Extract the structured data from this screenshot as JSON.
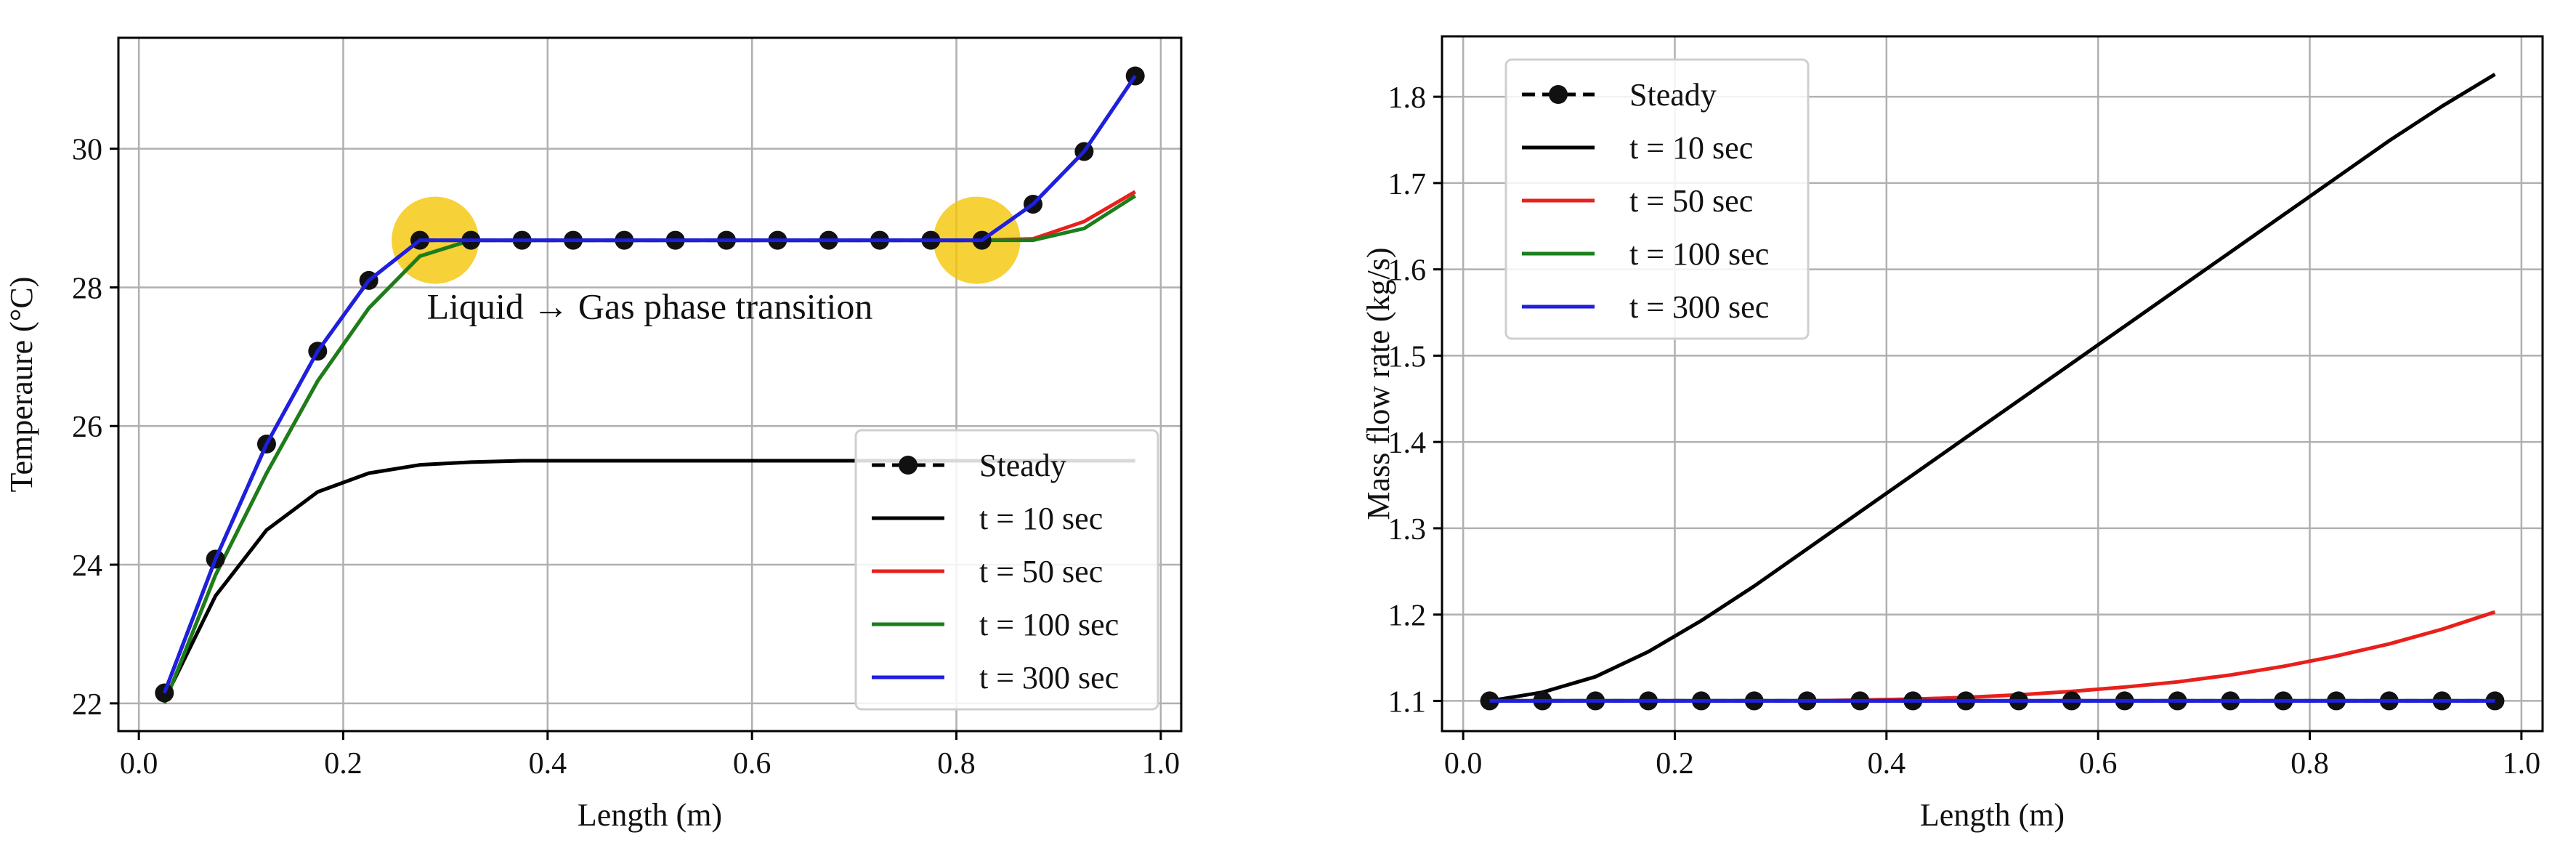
{
  "chart_data": [
    {
      "type": "line",
      "xlabel": "Length (m)",
      "ylabel": "Temperaure (°C)",
      "xlim": [
        -0.02,
        1.02
      ],
      "ylim": [
        21.6,
        31.6
      ],
      "xticks": [
        0.0,
        0.2,
        0.4,
        0.6,
        0.8,
        1.0
      ],
      "xtick_labels": [
        "0.0",
        "0.2",
        "0.4",
        "0.6",
        "0.8",
        "1.0"
      ],
      "yticks": [
        22,
        24,
        26,
        28,
        30
      ],
      "ytick_labels": [
        "22",
        "24",
        "26",
        "28",
        "30"
      ],
      "grid": true,
      "legend_position": "lower-right",
      "x": [
        0.025,
        0.075,
        0.125,
        0.175,
        0.225,
        0.275,
        0.325,
        0.375,
        0.425,
        0.475,
        0.525,
        0.575,
        0.625,
        0.675,
        0.725,
        0.775,
        0.825,
        0.875,
        0.925,
        0.975
      ],
      "series": [
        {
          "name": "Steady",
          "color": "#000000",
          "style": "dashed-markers",
          "values": [
            22.15,
            24.08,
            25.74,
            27.08,
            28.1,
            28.68,
            28.68,
            28.68,
            28.68,
            28.68,
            28.68,
            28.68,
            28.68,
            28.68,
            28.68,
            28.68,
            28.68,
            29.2,
            29.96,
            31.05
          ]
        },
        {
          "name": "t = 10 sec",
          "color": "#000000",
          "style": "solid",
          "values": [
            22.05,
            23.55,
            24.5,
            25.05,
            25.32,
            25.44,
            25.48,
            25.5,
            25.5,
            25.5,
            25.5,
            25.5,
            25.5,
            25.5,
            25.5,
            25.5,
            25.5,
            25.5,
            25.5,
            25.5
          ]
        },
        {
          "name": "t = 50 sec",
          "color": "#e8201c",
          "style": "solid",
          "values": [
            22.0,
            23.85,
            25.32,
            26.65,
            27.7,
            28.45,
            28.68,
            28.68,
            28.68,
            28.68,
            28.68,
            28.68,
            28.68,
            28.68,
            28.68,
            28.68,
            28.68,
            28.7,
            28.95,
            29.38
          ]
        },
        {
          "name": "t = 100 sec",
          "color": "#1a7f1a",
          "style": "solid",
          "values": [
            22.0,
            23.85,
            25.32,
            26.65,
            27.7,
            28.45,
            28.68,
            28.68,
            28.68,
            28.68,
            28.68,
            28.68,
            28.68,
            28.68,
            28.68,
            28.68,
            28.68,
            28.68,
            28.85,
            29.32
          ]
        },
        {
          "name": "t = 300 sec",
          "color": "#1f1fe0",
          "style": "solid",
          "values": [
            22.15,
            24.08,
            25.74,
            27.08,
            28.1,
            28.68,
            28.68,
            28.68,
            28.68,
            28.68,
            28.68,
            28.68,
            28.68,
            28.68,
            28.68,
            28.68,
            28.68,
            29.2,
            29.96,
            31.05
          ]
        }
      ],
      "highlights": [
        {
          "x": 0.29,
          "y": 28.68,
          "color": "#f5c400"
        },
        {
          "x": 0.82,
          "y": 28.68,
          "color": "#f5c400"
        }
      ],
      "annotation": {
        "text": "Liquid → Gas phase transition",
        "x": 0.5,
        "y": 27.55
      }
    },
    {
      "type": "line",
      "xlabel": "Length (m)",
      "ylabel": "Mass flow rate (kg/s)",
      "xlim": [
        -0.02,
        1.02
      ],
      "ylim": [
        1.065,
        1.87
      ],
      "xticks": [
        0.0,
        0.2,
        0.4,
        0.6,
        0.8,
        1.0
      ],
      "xtick_labels": [
        "0.0",
        "0.2",
        "0.4",
        "0.6",
        "0.8",
        "1.0"
      ],
      "yticks": [
        1.1,
        1.2,
        1.3,
        1.4,
        1.5,
        1.6,
        1.7,
        1.8
      ],
      "ytick_labels": [
        "1.1",
        "1.2",
        "1.3",
        "1.4",
        "1.5",
        "1.6",
        "1.7",
        "1.8"
      ],
      "grid": true,
      "legend_position": "upper-left",
      "x": [
        0.025,
        0.075,
        0.125,
        0.175,
        0.225,
        0.275,
        0.325,
        0.375,
        0.425,
        0.475,
        0.525,
        0.575,
        0.625,
        0.675,
        0.725,
        0.775,
        0.825,
        0.875,
        0.925,
        0.975
      ],
      "series": [
        {
          "name": "Steady",
          "color": "#000000",
          "style": "dashed-markers",
          "values": [
            1.1,
            1.1,
            1.1,
            1.1,
            1.1,
            1.1,
            1.1,
            1.1,
            1.1,
            1.1,
            1.1,
            1.1,
            1.1,
            1.1,
            1.1,
            1.1,
            1.1,
            1.1,
            1.1,
            1.1
          ]
        },
        {
          "name": "t = 10 sec",
          "color": "#000000",
          "style": "solid",
          "values": [
            1.1,
            1.11,
            1.128,
            1.157,
            1.193,
            1.233,
            1.276,
            1.319,
            1.362,
            1.405,
            1.448,
            1.491,
            1.534,
            1.577,
            1.62,
            1.663,
            1.706,
            1.749,
            1.789,
            1.826
          ]
        },
        {
          "name": "t = 50 sec",
          "color": "#e8201c",
          "style": "solid",
          "values": [
            1.1,
            1.1,
            1.1,
            1.1,
            1.1,
            1.1,
            1.1,
            1.101,
            1.102,
            1.104,
            1.107,
            1.111,
            1.116,
            1.122,
            1.13,
            1.14,
            1.152,
            1.166,
            1.183,
            1.203
          ]
        },
        {
          "name": "t = 100 sec",
          "color": "#1a7f1a",
          "style": "solid",
          "values": [
            1.1,
            1.1,
            1.1,
            1.1,
            1.1,
            1.1,
            1.1,
            1.1,
            1.1,
            1.1,
            1.1,
            1.1,
            1.1,
            1.1,
            1.1,
            1.1,
            1.1,
            1.1,
            1.1,
            1.1
          ]
        },
        {
          "name": "t = 300 sec",
          "color": "#1f1fe0",
          "style": "solid",
          "values": [
            1.1,
            1.1,
            1.1,
            1.1,
            1.1,
            1.1,
            1.1,
            1.1,
            1.1,
            1.1,
            1.1,
            1.1,
            1.1,
            1.1,
            1.1,
            1.1,
            1.1,
            1.1,
            1.1,
            1.1
          ]
        }
      ]
    }
  ]
}
